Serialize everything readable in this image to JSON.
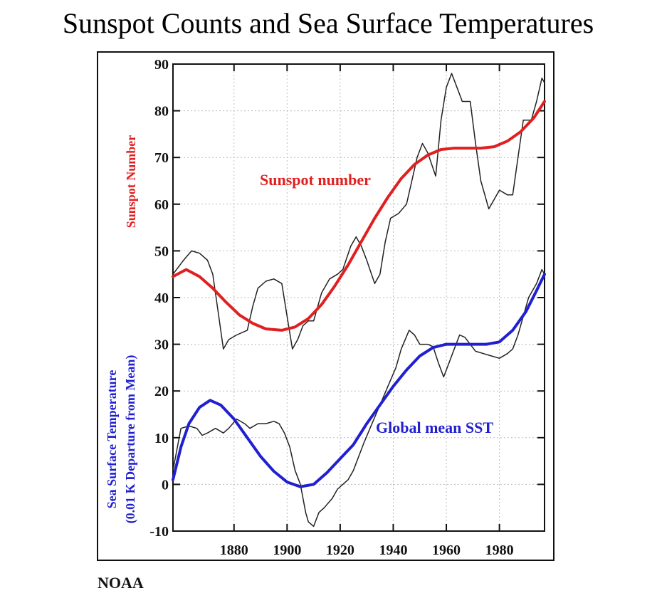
{
  "chart_data": {
    "type": "line",
    "title": "Sunspot Counts and Sea Surface Temperatures",
    "y_label_sunspot": "Sunspot Number",
    "y_label_sst": [
      "Sea Surface Temperature",
      "(0.01 K Departure from Mean)"
    ],
    "source": "NOAA",
    "xlim": [
      1857,
      1997
    ],
    "ylim": [
      -10,
      90
    ],
    "xticks": [
      1880,
      1900,
      1920,
      1940,
      1960,
      1980
    ],
    "yticks": [
      -10,
      0,
      10,
      20,
      30,
      40,
      50,
      60,
      70,
      80,
      90
    ],
    "grid": true,
    "series": [
      {
        "color": "#222222",
        "x": [
          1857,
          1861,
          1864,
          1867,
          1870,
          1872,
          1874,
          1876,
          1878,
          1881,
          1885,
          1887,
          1889,
          1892,
          1895,
          1898,
          1900,
          1902,
          1904,
          1906,
          1908,
          1910,
          1913,
          1916,
          1919,
          1921,
          1924,
          1926,
          1928,
          1930,
          1933,
          1935,
          1937,
          1939,
          1942,
          1945,
          1947,
          1949,
          1951,
          1953,
          1956,
          1958,
          1960,
          1962,
          1964,
          1966,
          1969,
          1971,
          1973,
          1976,
          1978,
          1980,
          1983,
          1985,
          1987,
          1989,
          1992,
          1994,
          1996,
          1997
        ],
        "values": [
          45,
          48,
          50,
          49.5,
          48,
          45,
          37,
          29,
          31,
          32,
          33,
          38,
          42,
          43.5,
          44,
          43,
          36,
          29,
          31,
          34,
          35,
          35,
          41,
          44,
          45,
          46,
          51,
          53,
          51,
          48,
          43,
          45,
          52,
          57,
          58,
          60,
          65,
          70,
          73,
          71,
          66,
          78,
          85,
          88,
          85,
          82,
          82,
          73,
          65,
          59,
          61,
          63,
          62,
          62,
          70,
          78,
          78,
          82,
          87,
          86
        ]
      },
      {
        "name": "Sunspot number",
        "color": "#e02020",
        "x": [
          1857,
          1862,
          1867,
          1872,
          1877,
          1882,
          1887,
          1892,
          1898,
          1903,
          1908,
          1913,
          1918,
          1923,
          1928,
          1933,
          1938,
          1943,
          1948,
          1953,
          1958,
          1963,
          1968,
          1973,
          1978,
          1983,
          1988,
          1993,
          1997
        ],
        "values": [
          44.5,
          46,
          44.5,
          42,
          39,
          36.3,
          34.5,
          33.3,
          33,
          33.7,
          35.5,
          38.5,
          42.5,
          47,
          52,
          57,
          61.5,
          65.5,
          68.5,
          70.5,
          71.7,
          72,
          72,
          72,
          72.3,
          73.5,
          75.5,
          78.5,
          82
        ]
      },
      {
        "color": "#222222",
        "x": [
          1857,
          1860,
          1863,
          1866,
          1868,
          1870,
          1873,
          1876,
          1878,
          1881,
          1884,
          1886,
          1889,
          1892,
          1895,
          1897,
          1899,
          1901,
          1903,
          1905,
          1907,
          1908,
          1910,
          1912,
          1914,
          1917,
          1919,
          1921,
          1923,
          1925,
          1927,
          1929,
          1932,
          1935,
          1938,
          1941,
          1943,
          1946,
          1948,
          1950,
          1953,
          1955,
          1957,
          1959,
          1961,
          1963,
          1965,
          1967,
          1969,
          1971,
          1974,
          1977,
          1980,
          1983,
          1985,
          1987,
          1989,
          1991,
          1994,
          1996,
          1997
        ],
        "values": [
          3,
          12,
          12.5,
          12,
          10.5,
          11,
          12,
          11,
          12,
          14,
          13,
          12,
          13,
          13,
          13.5,
          13,
          11,
          8,
          3,
          0,
          -6,
          -8,
          -9,
          -6,
          -5,
          -3,
          -1,
          0,
          1,
          3,
          6,
          9,
          13,
          17,
          21,
          25,
          29,
          33,
          32,
          30,
          30,
          29.5,
          26,
          23,
          26,
          29,
          32,
          31.5,
          30,
          28.5,
          28,
          27.5,
          27,
          28,
          29,
          32,
          36,
          40,
          43,
          46,
          45
        ]
      },
      {
        "name": "Global mean SST",
        "color": "#2020d0",
        "x": [
          1857,
          1860,
          1863,
          1867,
          1871,
          1875,
          1880,
          1885,
          1890,
          1895,
          1900,
          1905,
          1910,
          1915,
          1920,
          1925,
          1930,
          1935,
          1940,
          1945,
          1950,
          1955,
          1960,
          1965,
          1970,
          1975,
          1980,
          1985,
          1990,
          1994,
          1997
        ],
        "values": [
          1,
          8,
          13,
          16.5,
          18,
          17,
          14,
          10,
          6,
          2.8,
          0.5,
          -0.5,
          0,
          2.5,
          5.5,
          8.5,
          13,
          17,
          21,
          24.5,
          27.5,
          29.3,
          30,
          30,
          30,
          30,
          30.5,
          33,
          37,
          41.5,
          45
        ]
      }
    ]
  }
}
